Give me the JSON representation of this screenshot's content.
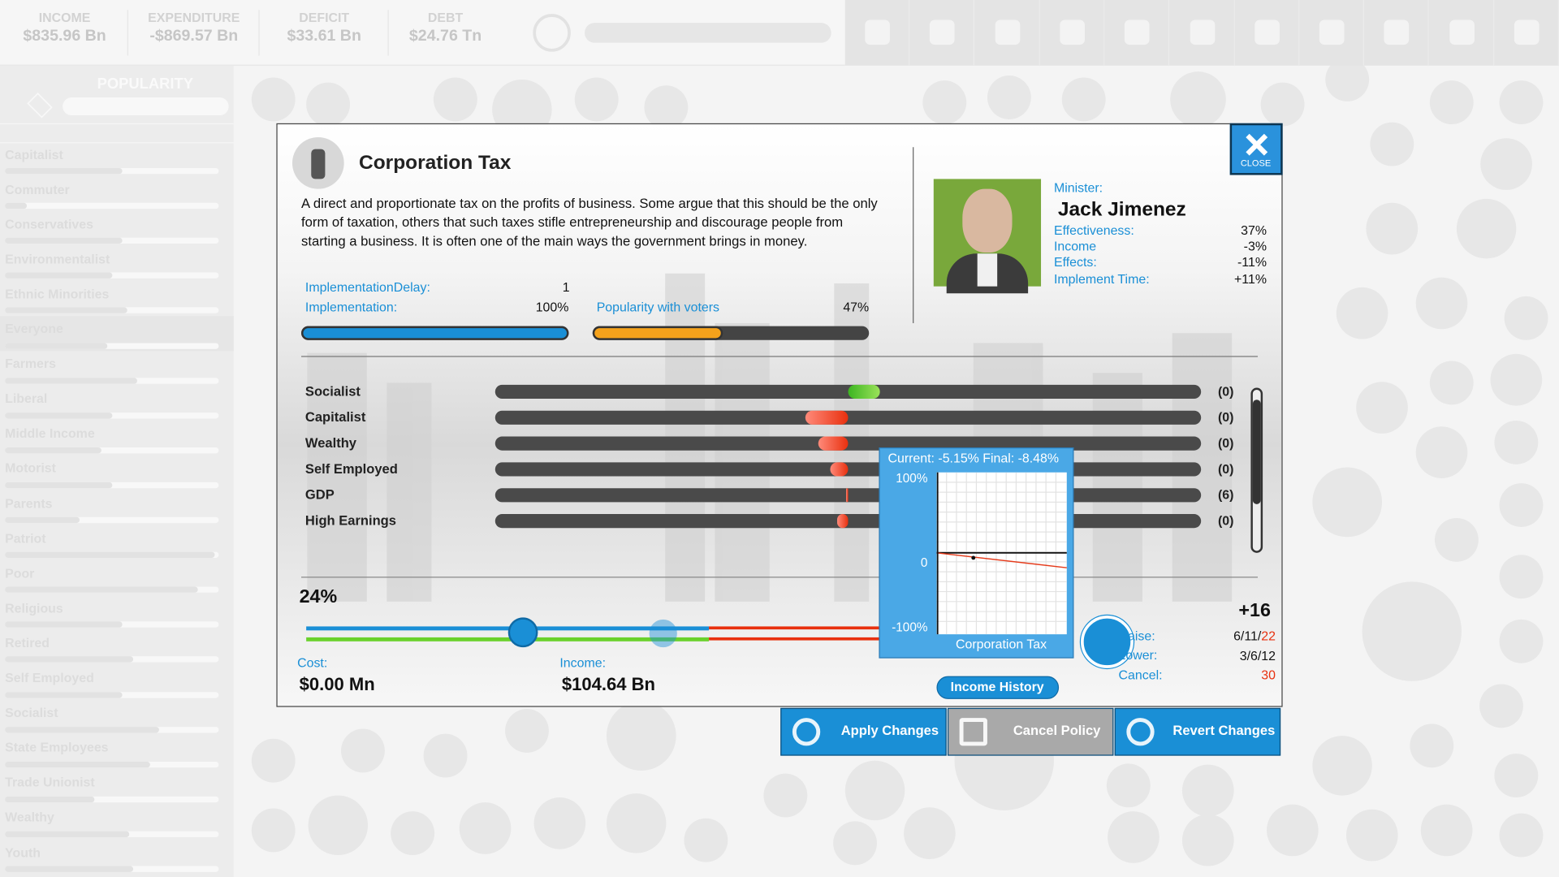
{
  "top_bar": {
    "stats": [
      {
        "label": "INCOME",
        "value": "$835.96 Bn"
      },
      {
        "label": "EXPENDITURE",
        "value": "-$869.57 Bn"
      },
      {
        "label": "DEFICIT",
        "value": "$33.61 Bn"
      },
      {
        "label": "DEBT",
        "value": "$24.76 Tn"
      }
    ]
  },
  "sidebar": {
    "title": "POPULARITY",
    "groups": [
      {
        "name": "Capitalist",
        "popularity": 0.55
      },
      {
        "name": "Commuter",
        "popularity": 0.1
      },
      {
        "name": "Conservatives",
        "popularity": 0.55
      },
      {
        "name": "Environmentalist",
        "popularity": 0.5
      },
      {
        "name": "Ethnic Minorities",
        "popularity": 0.57
      },
      {
        "name": "Everyone",
        "popularity": 0.48
      },
      {
        "name": "Farmers",
        "popularity": 0.62
      },
      {
        "name": "Liberal",
        "popularity": 0.5
      },
      {
        "name": "Middle Income",
        "popularity": 0.45
      },
      {
        "name": "Motorist",
        "popularity": 0.5
      },
      {
        "name": "Parents",
        "popularity": 0.35
      },
      {
        "name": "Patriot",
        "popularity": 0.98
      },
      {
        "name": "Poor",
        "popularity": 0.9
      },
      {
        "name": "Religious",
        "popularity": 0.55
      },
      {
        "name": "Retired",
        "popularity": 0.6
      },
      {
        "name": "Self Employed",
        "popularity": 0.55
      },
      {
        "name": "Socialist",
        "popularity": 0.72
      },
      {
        "name": "State Employees",
        "popularity": 0.68
      },
      {
        "name": "Trade Unionist",
        "popularity": 0.42
      },
      {
        "name": "Wealthy",
        "popularity": 0.58
      },
      {
        "name": "Youth",
        "popularity": 0.6
      }
    ]
  },
  "dialog": {
    "title": "Corporation Tax",
    "description": "A direct and proportionate tax on the profits of business. Some argue that this should be the only form of taxation, others that such taxes stifle entrepreneurship and discourage people from starting a business. It is often one of the main ways the government brings in money.",
    "close": "CLOSE",
    "implementation_delay": {
      "label": "ImplementationDelay:",
      "value": "1"
    },
    "implementation": {
      "label": "Implementation:",
      "value": "100%"
    },
    "popularity": {
      "label": "Popularity with voters",
      "value": "47%"
    },
    "minister": {
      "label": "Minister:",
      "name": "Jack Jimenez",
      "stats": [
        {
          "label": "Effectiveness:",
          "value": "37%"
        },
        {
          "label": "Income",
          "value": "-3%"
        },
        {
          "label": "Effects:",
          "value": "-11%"
        },
        {
          "label": "Implement Time:",
          "value": "+11%"
        }
      ]
    },
    "effects": [
      {
        "name": "Socialist",
        "effect": 0.09,
        "value": "(0)"
      },
      {
        "name": "Capitalist",
        "effect": -0.12,
        "value": "(0)"
      },
      {
        "name": "Wealthy",
        "effect": -0.085,
        "value": "(0)"
      },
      {
        "name": "Self Employed",
        "effect": -0.05,
        "value": "(0)"
      },
      {
        "name": "GDP",
        "effect": -0.006,
        "value": "(6)"
      },
      {
        "name": "High Earnings",
        "effect": -0.03,
        "value": "(0)"
      }
    ],
    "slider_value": "24%",
    "cost": {
      "label": "Cost:",
      "value": "$0.00 Mn"
    },
    "income": {
      "label": "Income:",
      "value": "$104.64 Bn"
    },
    "tooltip": {
      "header": "Current: -5.15% Final: -8.48%",
      "axis_labels": [
        "100%",
        "0",
        "-100%"
      ],
      "caption": "Corporation Tax"
    },
    "income_history": "Income History",
    "political_capital": "+16",
    "costs": [
      {
        "label": "Raise:",
        "value": "6/11/",
        "highlight": "22"
      },
      {
        "label": "Lower:",
        "value": "3/6/12"
      },
      {
        "label": "Cancel:",
        "highlight": "30"
      }
    ]
  },
  "buttons": [
    "Apply Changes",
    "Cancel Policy",
    "Revert Changes"
  ]
}
